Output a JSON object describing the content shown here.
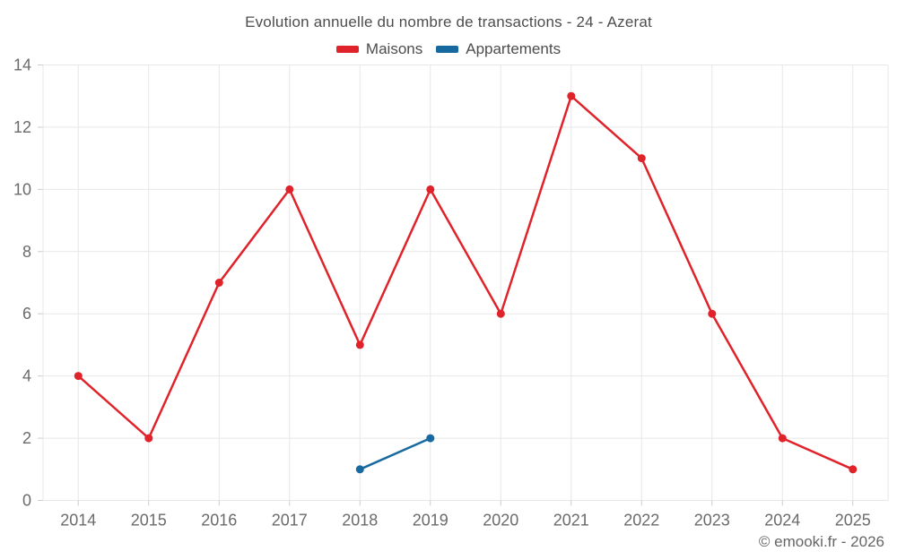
{
  "chart_data": {
    "type": "line",
    "title": "Evolution annuelle du nombre de transactions - 24 - Azerat",
    "categories": [
      "2014",
      "2015",
      "2016",
      "2017",
      "2018",
      "2019",
      "2020",
      "2021",
      "2022",
      "2023",
      "2024",
      "2025"
    ],
    "series": [
      {
        "name": "Maisons",
        "color": "#e0232a",
        "values": [
          4,
          2,
          7,
          10,
          5,
          10,
          6,
          13,
          11,
          6,
          2,
          1
        ]
      },
      {
        "name": "Appartements",
        "color": "#17699f",
        "values": [
          null,
          null,
          null,
          null,
          1,
          2,
          null,
          null,
          null,
          null,
          null,
          null
        ]
      }
    ],
    "xlabel": "",
    "ylabel": "",
    "ylim": [
      0,
      14
    ],
    "ytick_step": 2,
    "grid": true,
    "legend_position": "top"
  },
  "footer": {
    "text": "© emooki.fr - 2026"
  },
  "colors": {
    "background": "#ffffff",
    "grid": "#e7e7e7",
    "axis_tick": "#cccccc",
    "tick_label": "#6b6b6b",
    "title_text": "#4d4d4d",
    "legend_text": "#4d4d4d",
    "footer_text": "#666666"
  }
}
